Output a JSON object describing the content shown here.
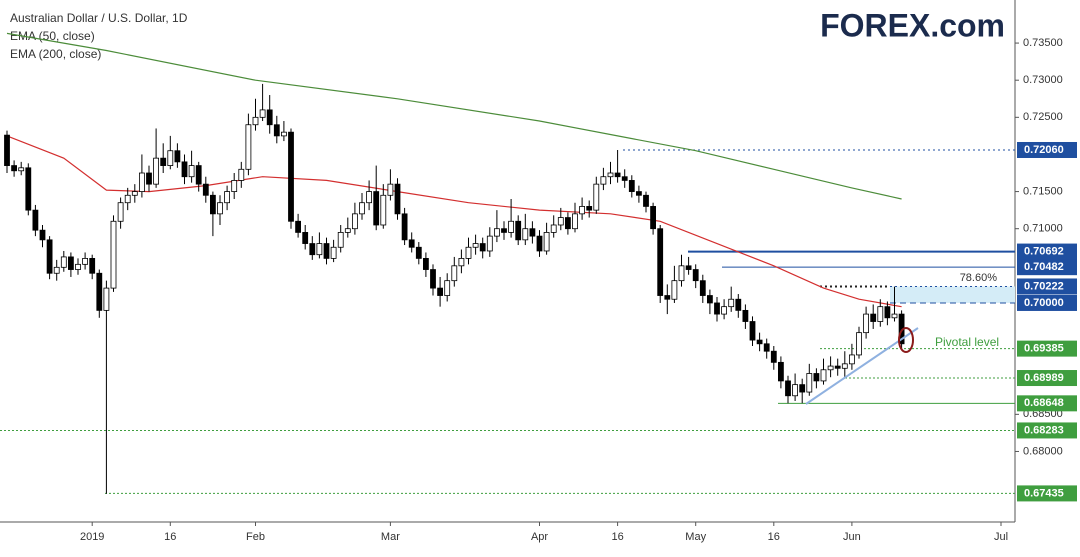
{
  "chart_data": {
    "type": "candlestick",
    "title": "Australian Dollar / U.S. Dollar, 1D",
    "logo": "FOREX.com",
    "categories": [
      null,
      null,
      null,
      null,
      null,
      null,
      null,
      null,
      null,
      null,
      null,
      null,
      "2019",
      null,
      null,
      null,
      null,
      null,
      null,
      null,
      null,
      null,
      null,
      "16",
      null,
      null,
      null,
      null,
      null,
      null,
      null,
      null,
      null,
      null,
      null,
      "Feb",
      null,
      null,
      null,
      null,
      null,
      null,
      null,
      null,
      null,
      null,
      null,
      null,
      null,
      null,
      null,
      null,
      null,
      null,
      "Mar",
      null,
      null,
      null,
      null,
      null,
      null,
      null,
      null,
      null,
      null,
      null,
      null,
      null,
      null,
      null,
      null,
      null,
      null,
      null,
      null,
      "Apr",
      null,
      null,
      null,
      null,
      null,
      null,
      null,
      null,
      null,
      null,
      "16",
      null,
      null,
      null,
      null,
      null,
      null,
      null,
      null,
      null,
      null,
      "May",
      null,
      null,
      null,
      null,
      null,
      null,
      null,
      null,
      null,
      null,
      "16",
      null,
      null,
      null,
      null,
      null,
      null,
      null,
      null,
      null,
      null,
      "Jun",
      null,
      null,
      null,
      null,
      null,
      null,
      null,
      null,
      null,
      null,
      null,
      null,
      null,
      null,
      null,
      null,
      null,
      null,
      null,
      null,
      "Jul",
      null
    ],
    "series": [
      {
        "up_color": "#ffffff",
        "down_color": "#000000",
        "values": [
          [
            0.7226,
            0.7232,
            0.7175,
            0.7185
          ],
          [
            0.7185,
            0.7192,
            0.717,
            0.7178
          ],
          [
            0.7178,
            0.719,
            0.7172,
            0.7182
          ],
          [
            0.7182,
            0.7188,
            0.7118,
            0.7125
          ],
          [
            0.7125,
            0.7132,
            0.709,
            0.7098
          ],
          [
            0.7098,
            0.7105,
            0.7075,
            0.7085
          ],
          [
            0.7085,
            0.709,
            0.7032,
            0.704
          ],
          [
            0.704,
            0.7058,
            0.703,
            0.7048
          ],
          [
            0.7048,
            0.707,
            0.7042,
            0.7062
          ],
          [
            0.7062,
            0.7068,
            0.7035,
            0.7045
          ],
          [
            0.7045,
            0.706,
            0.7038,
            0.7052
          ],
          [
            0.7052,
            0.7068,
            0.7045,
            0.706
          ],
          [
            0.706,
            0.7065,
            0.7032,
            0.704
          ],
          [
            0.704,
            0.7045,
            0.698,
            0.699
          ],
          [
            0.699,
            0.703,
            0.6743,
            0.702
          ],
          [
            0.702,
            0.7118,
            0.7015,
            0.711
          ],
          [
            0.711,
            0.7142,
            0.71,
            0.7135
          ],
          [
            0.7135,
            0.7155,
            0.7125,
            0.7145
          ],
          [
            0.7145,
            0.716,
            0.7135,
            0.715
          ],
          [
            0.715,
            0.72,
            0.7142,
            0.7175
          ],
          [
            0.7175,
            0.7185,
            0.715,
            0.716
          ],
          [
            0.716,
            0.7235,
            0.7155,
            0.7195
          ],
          [
            0.7195,
            0.7215,
            0.7175,
            0.7185
          ],
          [
            0.7185,
            0.7225,
            0.718,
            0.7205
          ],
          [
            0.7205,
            0.7215,
            0.7182,
            0.719
          ],
          [
            0.719,
            0.72,
            0.716,
            0.717
          ],
          [
            0.717,
            0.7205,
            0.7162,
            0.7185
          ],
          [
            0.7185,
            0.719,
            0.715,
            0.716
          ],
          [
            0.716,
            0.717,
            0.7135,
            0.7145
          ],
          [
            0.7145,
            0.715,
            0.709,
            0.712
          ],
          [
            0.712,
            0.7145,
            0.7105,
            0.7135
          ],
          [
            0.7135,
            0.7158,
            0.7125,
            0.715
          ],
          [
            0.715,
            0.7175,
            0.714,
            0.7165
          ],
          [
            0.7165,
            0.719,
            0.7155,
            0.718
          ],
          [
            0.718,
            0.7255,
            0.7172,
            0.724
          ],
          [
            0.724,
            0.7275,
            0.7232,
            0.725
          ],
          [
            0.725,
            0.7295,
            0.7245,
            0.726
          ],
          [
            0.726,
            0.728,
            0.7228,
            0.724
          ],
          [
            0.724,
            0.7252,
            0.7215,
            0.7225
          ],
          [
            0.7225,
            0.7245,
            0.7218,
            0.723
          ],
          [
            0.723,
            0.7235,
            0.71,
            0.711
          ],
          [
            0.711,
            0.712,
            0.7088,
            0.7095
          ],
          [
            0.7095,
            0.7105,
            0.7072,
            0.708
          ],
          [
            0.708,
            0.709,
            0.7058,
            0.7065
          ],
          [
            0.7065,
            0.7095,
            0.706,
            0.708
          ],
          [
            0.708,
            0.7088,
            0.7052,
            0.706
          ],
          [
            0.706,
            0.7085,
            0.7055,
            0.7075
          ],
          [
            0.7075,
            0.7105,
            0.7068,
            0.7095
          ],
          [
            0.7095,
            0.7115,
            0.7088,
            0.71
          ],
          [
            0.71,
            0.7135,
            0.7092,
            0.712
          ],
          [
            0.712,
            0.7148,
            0.7112,
            0.7135
          ],
          [
            0.7135,
            0.7165,
            0.7125,
            0.715
          ],
          [
            0.715,
            0.7185,
            0.7098,
            0.7105
          ],
          [
            0.7105,
            0.716,
            0.71,
            0.7145
          ],
          [
            0.7145,
            0.718,
            0.7138,
            0.716
          ],
          [
            0.716,
            0.7168,
            0.7112,
            0.712
          ],
          [
            0.712,
            0.7128,
            0.7078,
            0.7085
          ],
          [
            0.7085,
            0.7095,
            0.7068,
            0.7075
          ],
          [
            0.7075,
            0.7082,
            0.7052,
            0.706
          ],
          [
            0.706,
            0.7068,
            0.7035,
            0.7045
          ],
          [
            0.7045,
            0.7052,
            0.701,
            0.702
          ],
          [
            0.702,
            0.7035,
            0.6995,
            0.701
          ],
          [
            0.701,
            0.704,
            0.7002,
            0.703
          ],
          [
            0.703,
            0.7062,
            0.7022,
            0.705
          ],
          [
            0.705,
            0.7072,
            0.704,
            0.706
          ],
          [
            0.706,
            0.7088,
            0.7052,
            0.7075
          ],
          [
            0.7075,
            0.7092,
            0.7065,
            0.708
          ],
          [
            0.708,
            0.7088,
            0.706,
            0.707
          ],
          [
            0.707,
            0.7102,
            0.7062,
            0.709
          ],
          [
            0.709,
            0.7125,
            0.7082,
            0.71
          ],
          [
            0.71,
            0.711,
            0.7085,
            0.7095
          ],
          [
            0.7095,
            0.714,
            0.7088,
            0.711
          ],
          [
            0.711,
            0.7118,
            0.7078,
            0.7085
          ],
          [
            0.7085,
            0.712,
            0.7078,
            0.71
          ],
          [
            0.71,
            0.711,
            0.708,
            0.709
          ],
          [
            0.709,
            0.7098,
            0.7062,
            0.707
          ],
          [
            0.707,
            0.7108,
            0.7065,
            0.7095
          ],
          [
            0.7095,
            0.7118,
            0.7088,
            0.7105
          ],
          [
            0.7105,
            0.7128,
            0.7098,
            0.7115
          ],
          [
            0.7115,
            0.7122,
            0.7092,
            0.71
          ],
          [
            0.71,
            0.7135,
            0.7095,
            0.712
          ],
          [
            0.712,
            0.7142,
            0.7112,
            0.713
          ],
          [
            0.713,
            0.7138,
            0.7115,
            0.7125
          ],
          [
            0.7125,
            0.717,
            0.712,
            0.716
          ],
          [
            0.716,
            0.7182,
            0.7152,
            0.717
          ],
          [
            0.717,
            0.719,
            0.716,
            0.7175
          ],
          [
            0.7175,
            0.7206,
            0.7162,
            0.717
          ],
          [
            0.717,
            0.718,
            0.7155,
            0.7165
          ],
          [
            0.7165,
            0.7172,
            0.7142,
            0.715
          ],
          [
            0.715,
            0.7158,
            0.7135,
            0.7145
          ],
          [
            0.7145,
            0.715,
            0.7122,
            0.713
          ],
          [
            0.713,
            0.7135,
            0.7092,
            0.71
          ],
          [
            0.71,
            0.7105,
            0.7,
            0.701
          ],
          [
            0.701,
            0.7025,
            0.6985,
            0.7005
          ],
          [
            0.7005,
            0.705,
            0.7,
            0.703
          ],
          [
            0.703,
            0.7065,
            0.7022,
            0.705
          ],
          [
            0.705,
            0.7062,
            0.7038,
            0.7045
          ],
          [
            0.7045,
            0.7052,
            0.702,
            0.703
          ],
          [
            0.703,
            0.7038,
            0.7,
            0.701
          ],
          [
            0.701,
            0.7018,
            0.6985,
            0.7
          ],
          [
            0.7,
            0.7008,
            0.6975,
            0.6985
          ],
          [
            0.6985,
            0.7005,
            0.6978,
            0.6995
          ],
          [
            0.6995,
            0.7022,
            0.6988,
            0.7005
          ],
          [
            0.7005,
            0.7012,
            0.698,
            0.699
          ],
          [
            0.699,
            0.6998,
            0.6965,
            0.6975
          ],
          [
            0.6975,
            0.6982,
            0.6942,
            0.695
          ],
          [
            0.695,
            0.696,
            0.6935,
            0.6945
          ],
          [
            0.6945,
            0.6952,
            0.6925,
            0.6935
          ],
          [
            0.6935,
            0.6942,
            0.691,
            0.692
          ],
          [
            0.692,
            0.6928,
            0.6885,
            0.6895
          ],
          [
            0.6895,
            0.6902,
            0.6865,
            0.6875
          ],
          [
            0.6875,
            0.6905,
            0.6868,
            0.689
          ],
          [
            0.689,
            0.6898,
            0.6865,
            0.688
          ],
          [
            0.688,
            0.6918,
            0.6875,
            0.6905
          ],
          [
            0.6905,
            0.6912,
            0.6885,
            0.6895
          ],
          [
            0.6895,
            0.6925,
            0.689,
            0.691
          ],
          [
            0.691,
            0.6928,
            0.69,
            0.6915
          ],
          [
            0.6915,
            0.6925,
            0.6902,
            0.6912
          ],
          [
            0.6912,
            0.6935,
            0.6899,
            0.6918
          ],
          [
            0.6918,
            0.6945,
            0.691,
            0.693
          ],
          [
            0.693,
            0.6968,
            0.6925,
            0.696
          ],
          [
            0.696,
            0.6995,
            0.6952,
            0.6985
          ],
          [
            0.6985,
            0.6998,
            0.6965,
            0.6975
          ],
          [
            0.6975,
            0.7005,
            0.6968,
            0.6995
          ],
          [
            0.6995,
            0.7002,
            0.697,
            0.698
          ],
          [
            0.698,
            0.7022,
            0.6975,
            0.6985
          ],
          [
            0.6985,
            0.699,
            0.6938,
            0.6945
          ],
          null,
          null,
          null,
          null,
          null,
          null,
          null,
          null,
          null,
          null,
          null,
          null,
          null,
          null,
          null
        ]
      },
      {
        "name": "EMA (50, close)",
        "color": "#d32f2f",
        "x": [
          0,
          8,
          14,
          20,
          28,
          36,
          45,
          55,
          65,
          75,
          85,
          92,
          100,
          108,
          115,
          120,
          126
        ],
        "values": [
          0.7225,
          0.7195,
          0.7152,
          0.715,
          0.7158,
          0.717,
          0.7165,
          0.715,
          0.7135,
          0.7125,
          0.712,
          0.711,
          0.708,
          0.705,
          0.702,
          0.7005,
          0.6995
        ]
      },
      {
        "name": "EMA (200, close)",
        "color": "#4c8c3a",
        "x": [
          0,
          14,
          35,
          55,
          75,
          86,
          97,
          108,
          119,
          126
        ],
        "values": [
          0.7363,
          0.734,
          0.73,
          0.7275,
          0.7245,
          0.7225,
          0.7205,
          0.718,
          0.7155,
          0.714
        ]
      }
    ],
    "ylim": [
      0.6705,
      0.7408
    ],
    "yticks": [
      {
        "value": 0.735,
        "label": "0.73500"
      },
      {
        "value": 0.73,
        "label": "0.73000"
      },
      {
        "value": 0.725,
        "label": "0.72500"
      },
      {
        "value": 0.715,
        "label": "0.71500"
      },
      {
        "value": 0.71,
        "label": "0.71000"
      },
      {
        "value": 0.685,
        "label": "0.68500"
      },
      {
        "value": 0.68,
        "label": "0.68000"
      }
    ],
    "levels": [
      {
        "value": 0.7206,
        "label": "0.72060",
        "color": "#1f4fa0"
      },
      {
        "value": 0.70692,
        "label": "0.70692",
        "color": "#1f4fa0"
      },
      {
        "value": 0.70482,
        "label": "0.70482",
        "color": "#1f4fa0"
      },
      {
        "value": 0.70222,
        "label": "0.70222",
        "color": "#1f4fa0"
      },
      {
        "value": 0.7,
        "label": "0.70000",
        "color": "#1f4fa0"
      },
      {
        "value": 0.69385,
        "label": "0.69385",
        "color": "#3f9e3f"
      },
      {
        "value": 0.68989,
        "label": "0.68989",
        "color": "#3f9e3f"
      },
      {
        "value": 0.68648,
        "label": "0.68648",
        "color": "#3f9e3f"
      },
      {
        "value": 0.68283,
        "label": "0.68283",
        "color": "#3f9e3f"
      },
      {
        "value": 0.67435,
        "label": "0.67435",
        "color": "#3f9e3f"
      }
    ],
    "annotations": [
      "78.60%",
      "Pivotal level"
    ]
  }
}
